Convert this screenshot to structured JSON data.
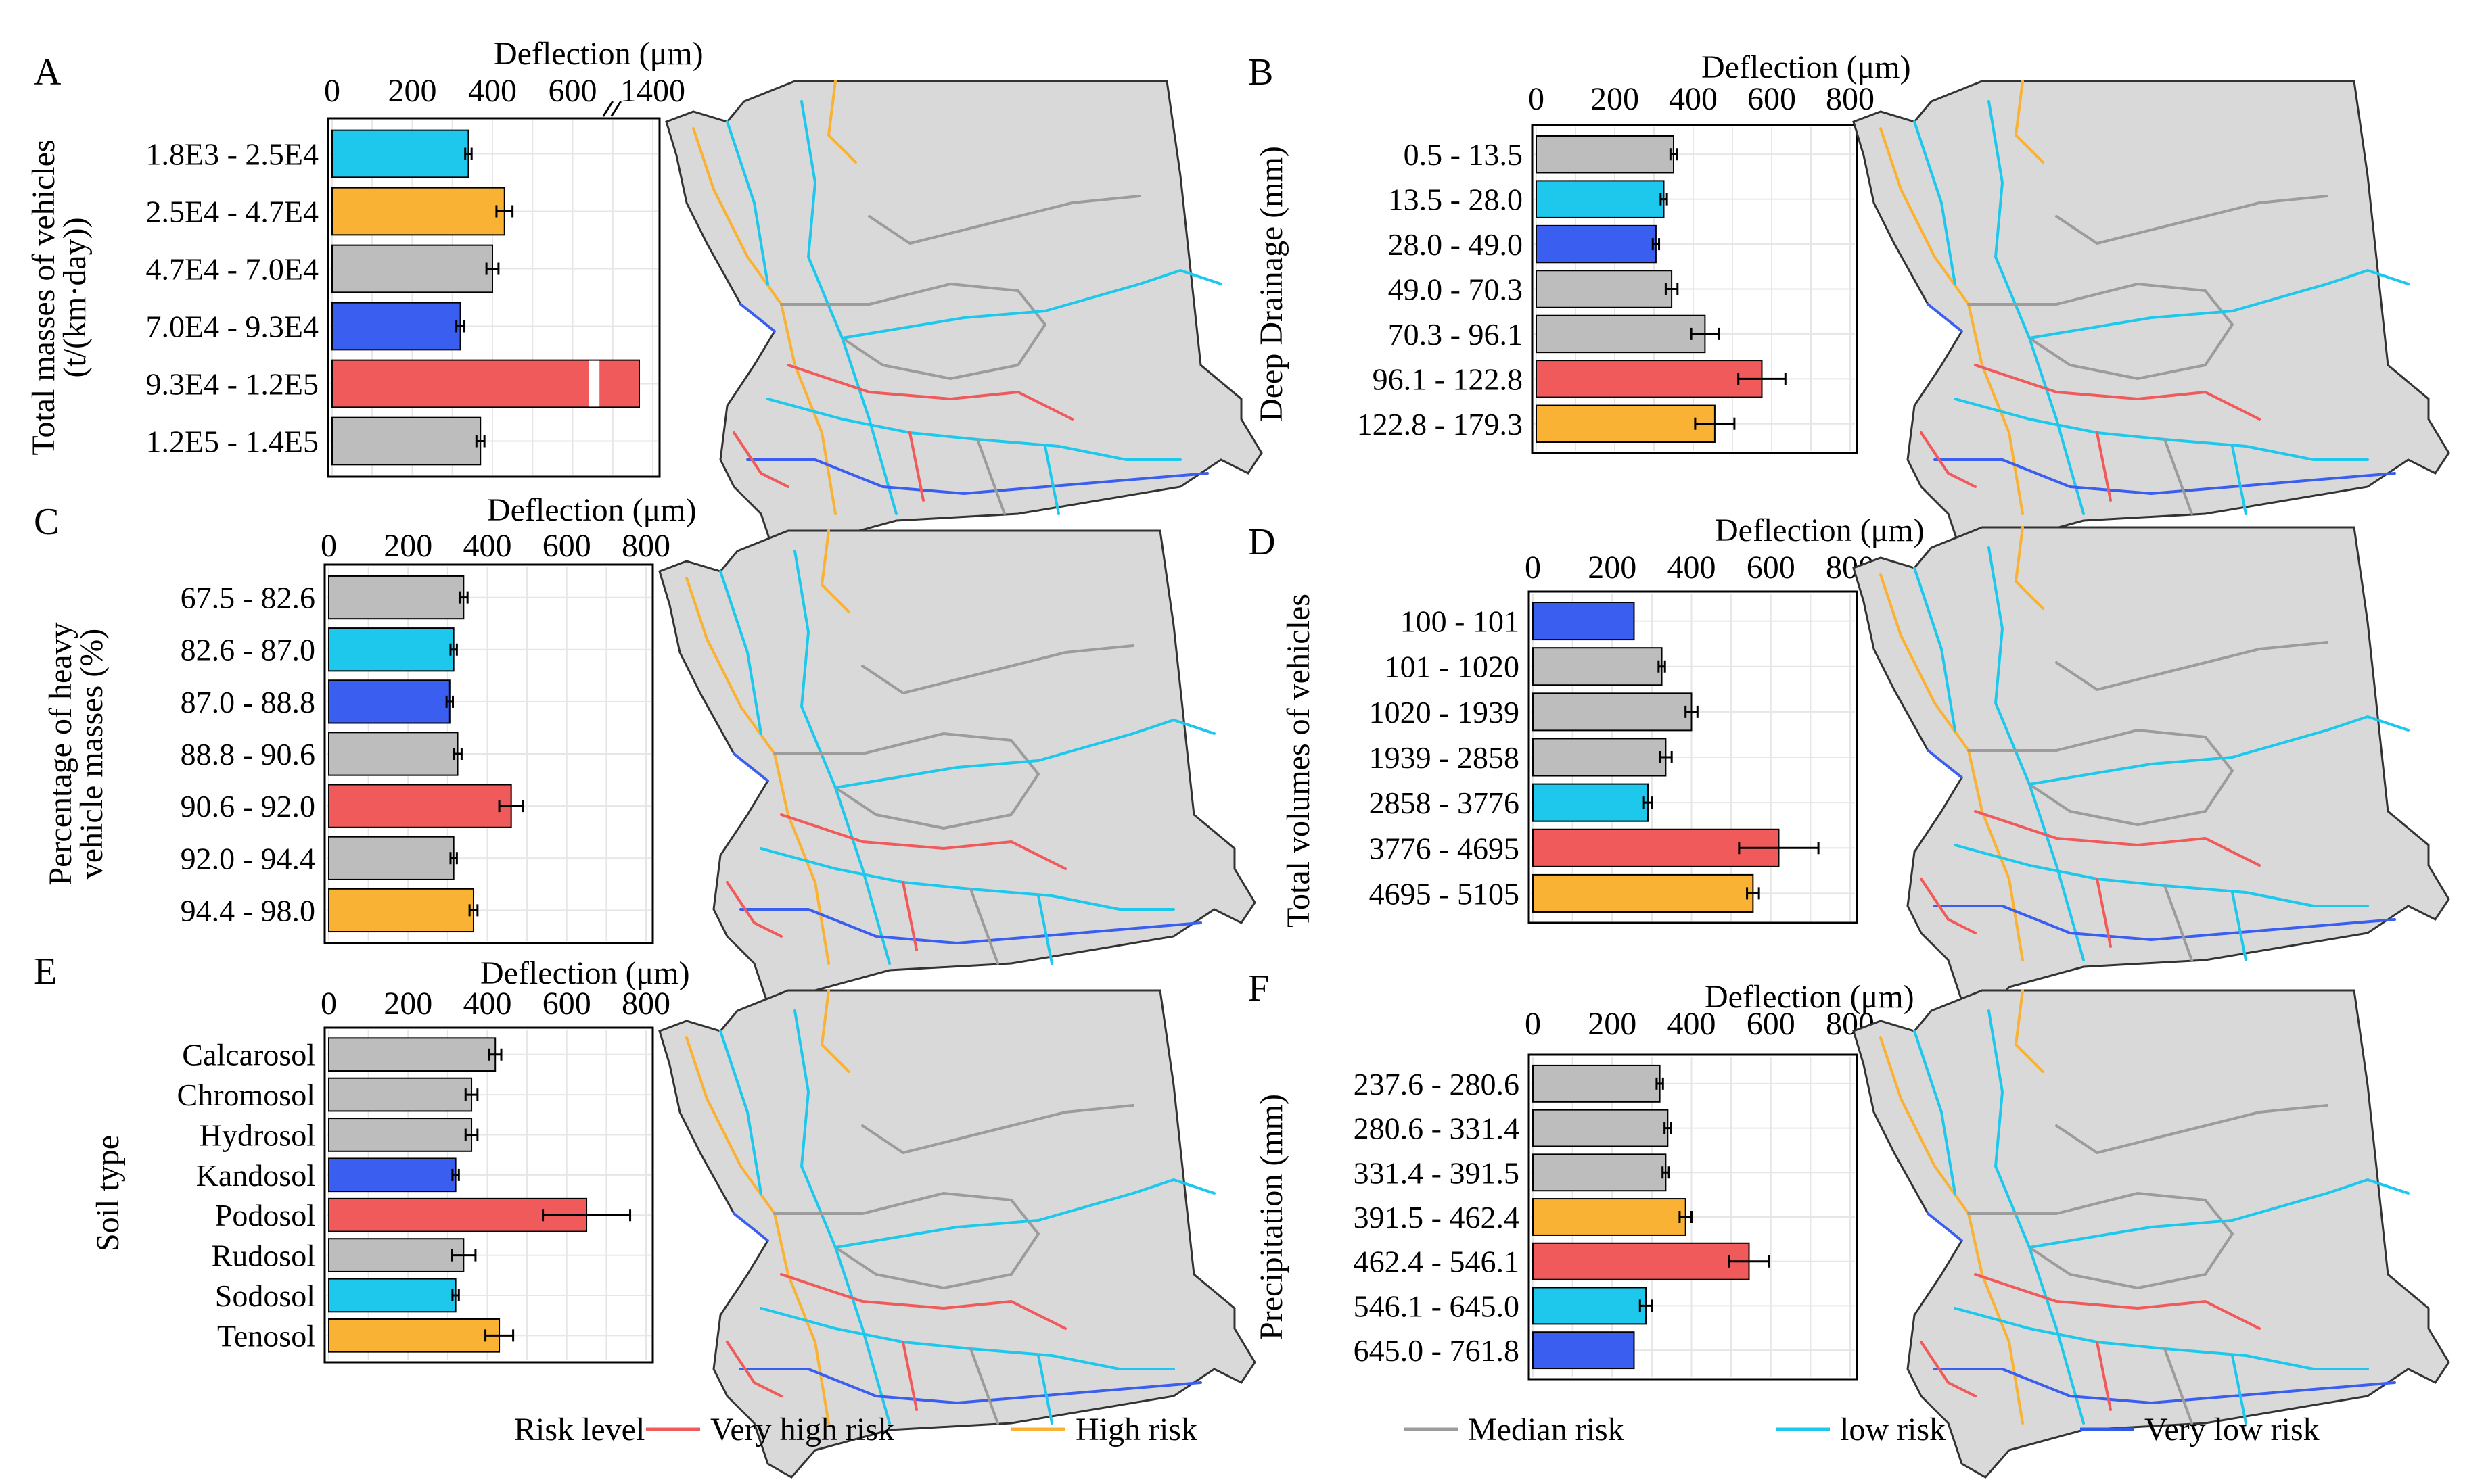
{
  "legend": {
    "title": "Risk level",
    "items": [
      {
        "label": "Very high risk",
        "color": "#f05a5a"
      },
      {
        "label": "High risk",
        "color": "#f9b233"
      },
      {
        "label": "Median risk",
        "color": "#9c9c9c"
      },
      {
        "label": "low risk",
        "color": "#1ec8ec"
      },
      {
        "label": "Very low risk",
        "color": "#2f5be8"
      }
    ]
  },
  "colors": {
    "very_high": "#f05a5a",
    "high": "#f9b233",
    "median": "#bdbdbd",
    "low": "#1ec8ec",
    "very_low": "#3a5ef0"
  },
  "chart_data": [
    {
      "panel": "A",
      "type": "bar",
      "orientation": "horizontal",
      "xlabel": "Deflection (μm)",
      "ylabel": "Total masses of vehicles (t/(km·day))",
      "xticks": [
        "0",
        "200",
        "400",
        "600",
        "1400"
      ],
      "axis_break": true,
      "xlim": [
        0,
        800
      ],
      "categories": [
        "1.8E3 - 2.5E4",
        "2.5E4 - 4.7E4",
        "4.7E4 - 7.0E4",
        "7.0E4 - 9.3E4",
        "9.3E4 - 1.2E5",
        "1.2E5 - 1.4E5"
      ],
      "values": [
        340,
        430,
        400,
        320,
        1400,
        370
      ],
      "errors": [
        8,
        20,
        15,
        10,
        0,
        10
      ],
      "risk": [
        "low",
        "high",
        "median",
        "very_low",
        "very_high",
        "median"
      ]
    },
    {
      "panel": "B",
      "type": "bar",
      "orientation": "horizontal",
      "xlabel": "Deflection (μm)",
      "ylabel": "Deep Drainage (mm)",
      "xticks": [
        "0",
        "200",
        "400",
        "600",
        "800"
      ],
      "xlim": [
        0,
        800
      ],
      "categories": [
        "0.5 - 13.5",
        "13.5 - 28.0",
        "28.0 - 49.0",
        "49.0 - 70.3",
        "70.3 - 96.1",
        "96.1 - 122.8",
        "122.8 - 179.3"
      ],
      "values": [
        350,
        325,
        305,
        345,
        430,
        575,
        455
      ],
      "errors": [
        8,
        8,
        8,
        15,
        35,
        60,
        50
      ],
      "risk": [
        "median",
        "low",
        "very_low",
        "median",
        "median",
        "very_high",
        "high"
      ]
    },
    {
      "panel": "C",
      "type": "bar",
      "orientation": "horizontal",
      "xlabel": "Deflection (μm)",
      "ylabel": "Percentage of heavy vehicle masses (%)",
      "xticks": [
        "0",
        "200",
        "400",
        "600",
        "800"
      ],
      "xlim": [
        0,
        800
      ],
      "categories": [
        "67.5 - 82.6",
        "82.6 - 87.0",
        "87.0 - 88.8",
        "88.8 - 90.6",
        "90.6 - 92.0",
        "92.0 - 94.4",
        "94.4 - 98.0"
      ],
      "values": [
        340,
        315,
        305,
        325,
        460,
        315,
        365
      ],
      "errors": [
        10,
        8,
        8,
        10,
        30,
        8,
        10
      ],
      "risk": [
        "median",
        "low",
        "very_low",
        "median",
        "very_high",
        "median",
        "high"
      ]
    },
    {
      "panel": "D",
      "type": "bar",
      "orientation": "horizontal",
      "xlabel": "Deflection (μm)",
      "ylabel": "Total volumes of vehicles",
      "xticks": [
        "0",
        "200",
        "400",
        "600",
        "800"
      ],
      "xlim": [
        0,
        800
      ],
      "categories": [
        "100 - 101",
        "101 - 1020",
        "1020 - 1939",
        "1939 - 2858",
        "2858 - 3776",
        "3776 - 4695",
        "4695 - 5105"
      ],
      "values": [
        255,
        325,
        400,
        335,
        290,
        620,
        555
      ],
      "errors": [
        0,
        8,
        15,
        15,
        10,
        100,
        15
      ],
      "risk": [
        "very_low",
        "median",
        "median",
        "median",
        "low",
        "very_high",
        "high"
      ]
    },
    {
      "panel": "E",
      "type": "bar",
      "orientation": "horizontal",
      "xlabel": "Deflection (μm)",
      "ylabel": "Soil type",
      "xticks": [
        "0",
        "200",
        "400",
        "600",
        "800"
      ],
      "xlim": [
        0,
        800
      ],
      "categories": [
        "Calcarosol",
        "Chromosol",
        "Hydrosol",
        "Kandosol",
        "Podosol",
        "Rudosol",
        "Sodosol",
        "Tenosol"
      ],
      "values": [
        420,
        360,
        360,
        320,
        650,
        340,
        320,
        430
      ],
      "errors": [
        15,
        15,
        15,
        8,
        110,
        30,
        8,
        35
      ],
      "risk": [
        "median",
        "median",
        "median",
        "very_low",
        "very_high",
        "median",
        "low",
        "high"
      ]
    },
    {
      "panel": "F",
      "type": "bar",
      "orientation": "horizontal",
      "xlabel": "Deflection (μm)",
      "ylabel": "Precipitation (mm)",
      "xticks": [
        "0",
        "200",
        "400",
        "600",
        "800"
      ],
      "xlim": [
        0,
        800
      ],
      "categories": [
        "237.6 - 280.6",
        "280.6 - 331.4",
        "331.4 - 391.5",
        "391.5 - 462.4",
        "462.4 - 546.1",
        "546.1 - 645.0",
        "645.0 - 761.8"
      ],
      "values": [
        320,
        340,
        335,
        385,
        545,
        285,
        255
      ],
      "errors": [
        8,
        8,
        8,
        15,
        50,
        15,
        0
      ],
      "risk": [
        "median",
        "median",
        "median",
        "high",
        "very_high",
        "low",
        "very_low"
      ]
    }
  ]
}
